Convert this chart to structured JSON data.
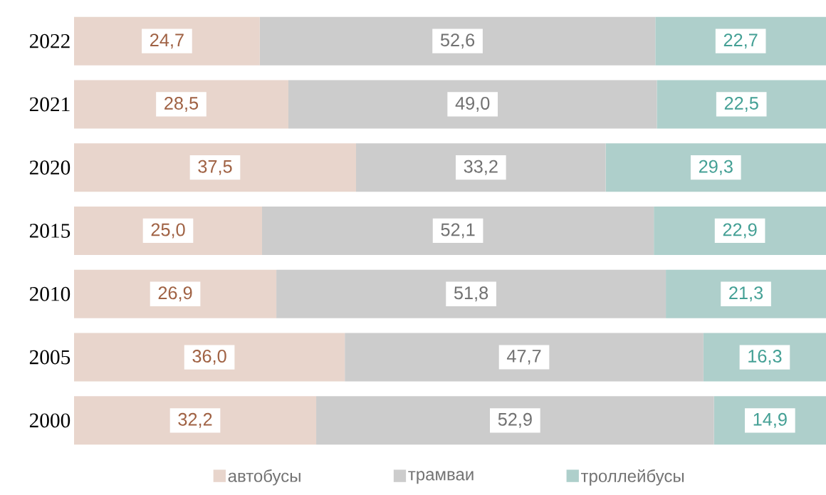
{
  "chart_data": {
    "type": "bar",
    "orientation": "horizontal",
    "stacked": true,
    "legend": "bottom",
    "categories": [
      "2022",
      "2021",
      "2020",
      "2015",
      "2010",
      "2005",
      "2000"
    ],
    "series": [
      {
        "name": "автобусы",
        "color": "#e8d5cc",
        "values": [
          24.7,
          28.5,
          37.5,
          25.0,
          26.9,
          36.0,
          32.2
        ],
        "value_labels": [
          "24,7",
          "28,5",
          "37,5",
          "25,0",
          "26,9",
          "36,0",
          "32,2"
        ]
      },
      {
        "name": "трамваи",
        "color": "#cccccc",
        "values": [
          52.6,
          49.0,
          33.2,
          52.1,
          51.8,
          47.7,
          52.9
        ],
        "value_labels": [
          "52,6",
          "49,0",
          "33,2",
          "52,1",
          "51,8",
          "47,7",
          "52,9"
        ]
      },
      {
        "name": "троллейбусы",
        "color": "#aecfcb",
        "values": [
          22.7,
          22.5,
          29.3,
          22.9,
          21.3,
          16.3,
          14.9
        ],
        "value_labels": [
          "22,7",
          "22,5",
          "29,3",
          "22,9",
          "21,3",
          "16,3",
          "14,9"
        ]
      }
    ]
  }
}
